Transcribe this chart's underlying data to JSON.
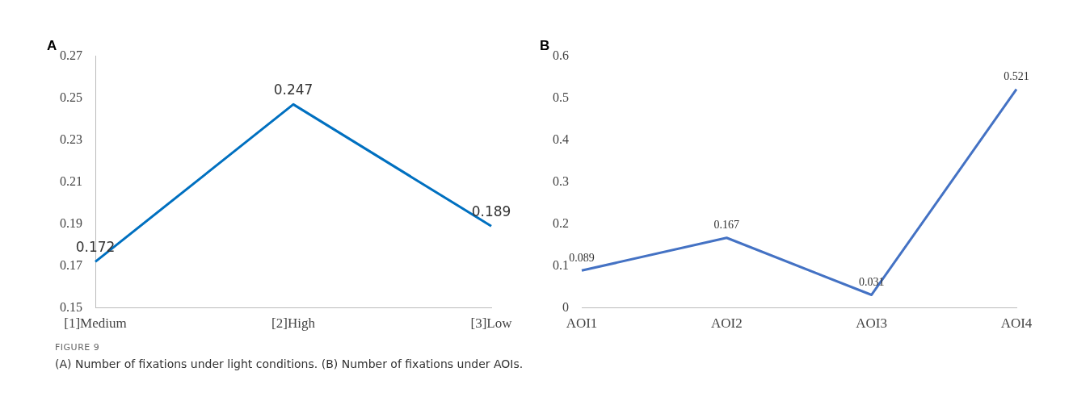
{
  "chart_data": [
    {
      "type": "line",
      "title": "A",
      "categories": [
        "[1]Medium",
        "[2]High",
        "[3]Low"
      ],
      "series": [
        {
          "color": "#0070c0",
          "values": [
            0.172,
            0.247,
            0.189
          ]
        }
      ],
      "ylim": [
        0.15,
        0.27
      ],
      "yticks": [
        0.15,
        0.17,
        0.19,
        0.21,
        0.23,
        0.25,
        0.27
      ],
      "grid": false,
      "marker": "none",
      "data_labels": true
    },
    {
      "type": "line",
      "title": "B",
      "categories": [
        "AOI1",
        "AOI2",
        "AOI3",
        "AOI4"
      ],
      "series": [
        {
          "color": "#4472c4",
          "values": [
            0.089,
            0.167,
            0.031,
            0.521
          ]
        }
      ],
      "ylim": [
        0,
        0.6
      ],
      "yticks": [
        0,
        0.1,
        0.2,
        0.3,
        0.4,
        0.5,
        0.6
      ],
      "grid": false,
      "marker": "none",
      "data_labels": true
    },
    {
      "type": "other",
      "title": "FIGURE 9",
      "annotations": [
        "(A) Number of fixations under light conditions. (B) Number of fixations under AOIs."
      ]
    }
  ]
}
